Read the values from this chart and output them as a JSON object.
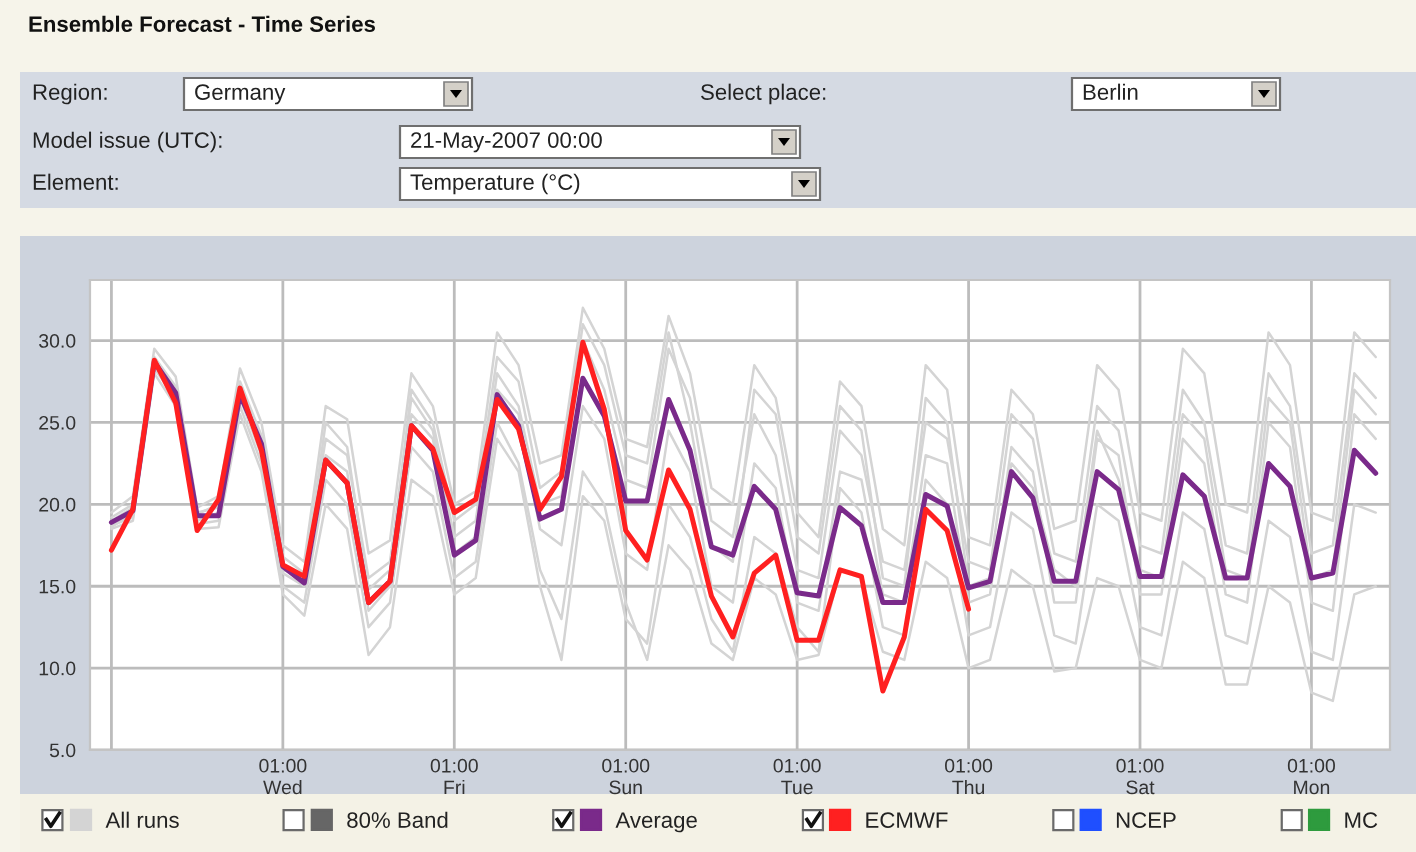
{
  "chart_data": {
    "type": "line",
    "title": "Ensemble Forecast - Time Series",
    "annotations": [
      "Region:",
      "Germany",
      "Select place:",
      "Berlin",
      "Model issue (UTC):",
      "21-May-2007 00:00",
      "Element:",
      "Temperature (°C)"
    ],
    "x": [
      "2007-05-21T01:00",
      "2007-05-21T07:00",
      "2007-05-21T13:00",
      "2007-05-21T19:00",
      "2007-05-22T01:00",
      "2007-05-22T07:00",
      "2007-05-22T13:00",
      "2007-05-22T19:00",
      "2007-05-23T01:00",
      "2007-05-23T07:00",
      "2007-05-23T13:00",
      "2007-05-23T19:00",
      "2007-05-24T01:00",
      "2007-05-24T07:00",
      "2007-05-24T13:00",
      "2007-05-24T19:00",
      "2007-05-25T01:00",
      "2007-05-25T07:00",
      "2007-05-25T13:00",
      "2007-05-25T19:00",
      "2007-05-26T01:00",
      "2007-05-26T07:00",
      "2007-05-26T13:00",
      "2007-05-26T19:00",
      "2007-05-27T01:00",
      "2007-05-27T07:00",
      "2007-05-27T13:00",
      "2007-05-27T19:00",
      "2007-05-28T01:00",
      "2007-05-28T07:00",
      "2007-05-28T13:00",
      "2007-05-28T19:00",
      "2007-05-29T01:00",
      "2007-05-29T07:00",
      "2007-05-29T13:00",
      "2007-05-29T19:00",
      "2007-05-30T01:00",
      "2007-05-30T07:00",
      "2007-05-30T13:00",
      "2007-05-30T19:00",
      "2007-05-31T01:00",
      "2007-05-31T07:00",
      "2007-05-31T13:00",
      "2007-05-31T19:00",
      "2007-06-01T01:00",
      "2007-06-01T07:00",
      "2007-06-01T13:00",
      "2007-06-01T19:00",
      "2007-06-02T01:00",
      "2007-06-02T07:00",
      "2007-06-02T13:00",
      "2007-06-02T19:00",
      "2007-06-03T01:00",
      "2007-06-03T07:00",
      "2007-06-03T13:00",
      "2007-06-03T19:00",
      "2007-06-04T01:00",
      "2007-06-04T07:00",
      "2007-06-04T13:00",
      "2007-06-04T19:00"
    ],
    "series": [
      {
        "name": "All runs",
        "color": "#d4d4d4",
        "values": [
          19.5,
          20.5,
          29.5,
          27.8,
          19.8,
          20.5,
          28.3,
          25.0,
          17.5,
          16.5,
          26.0,
          25.2,
          17.0,
          17.8,
          28.0,
          26.0,
          20.0,
          20.8,
          30.5,
          28.5,
          22.5,
          23.0,
          32.0,
          29.5,
          24.0,
          23.5,
          31.5,
          28.0,
          21.0,
          20.0,
          28.5,
          26.5,
          19.5,
          18.0,
          27.5,
          26.0,
          18.5,
          17.5,
          28.5,
          27.0,
          18.0,
          17.5,
          27.0,
          25.5,
          18.5,
          19.0,
          28.5,
          27.0,
          19.5,
          19.0,
          29.5,
          28.0,
          20.0,
          19.5,
          30.5,
          28.5,
          19.5,
          19.0,
          30.5,
          29.0
        ]
      },
      {
        "color": "#d4d4d4",
        "values": [
          18.5,
          19.0,
          28.0,
          26.0,
          18.8,
          19.0,
          26.0,
          22.5,
          15.0,
          14.0,
          21.5,
          20.0,
          12.5,
          14.0,
          23.5,
          22.0,
          15.5,
          16.5,
          25.0,
          22.5,
          16.0,
          13.0,
          22.0,
          20.0,
          14.0,
          10.5,
          17.5,
          16.0,
          11.5,
          10.5,
          15.5,
          14.5,
          10.5,
          10.8,
          16.0,
          15.5,
          11.0,
          10.5,
          16.5,
          15.5,
          10.0,
          10.5,
          16.0,
          15.0,
          9.8,
          10.0,
          15.5,
          15.0,
          10.5,
          10.0,
          16.5,
          15.5,
          9.0,
          9.0,
          15.0,
          14.0,
          8.5,
          8.0,
          14.5,
          15.0
        ]
      },
      {
        "color": "#d4d4d4",
        "values": [
          19.0,
          19.8,
          29.0,
          27.2,
          19.5,
          19.8,
          27.5,
          24.2,
          16.8,
          15.8,
          24.0,
          23.0,
          15.5,
          16.5,
          26.5,
          24.5,
          18.0,
          19.0,
          28.0,
          26.0,
          20.0,
          20.5,
          30.0,
          27.0,
          21.5,
          21.0,
          29.5,
          26.5,
          19.0,
          18.0,
          25.5,
          23.0,
          16.0,
          15.5,
          24.5,
          23.0,
          16.5,
          16.0,
          25.0,
          24.0,
          16.5,
          16.0,
          25.5,
          24.0,
          17.0,
          16.5,
          26.0,
          24.5,
          17.5,
          17.0,
          27.0,
          25.0,
          17.5,
          17.0,
          28.0,
          26.0,
          17.0,
          17.5,
          28.0,
          26.5
        ]
      },
      {
        "color": "#d4d4d4",
        "values": [
          18.7,
          19.2,
          28.3,
          26.5,
          18.5,
          18.6,
          25.5,
          22.0,
          14.5,
          13.2,
          20.0,
          18.5,
          10.8,
          12.5,
          21.5,
          20.5,
          14.5,
          15.5,
          24.0,
          22.0,
          15.0,
          10.5,
          20.5,
          19.0,
          13.0,
          11.5,
          20.0,
          18.0,
          13.0,
          11.0,
          18.0,
          17.0,
          12.5,
          11.0,
          21.0,
          19.5,
          12.5,
          12.0,
          21.5,
          20.0,
          12.0,
          12.5,
          19.5,
          18.5,
          12.0,
          11.5,
          20.0,
          19.0,
          12.5,
          12.0,
          19.5,
          18.5,
          12.0,
          11.5,
          19.0,
          18.0,
          11.0,
          10.5,
          20.0,
          19.5
        ]
      },
      {
        "color": "#d4d4d4",
        "values": [
          19.2,
          20.0,
          28.5,
          27.0,
          19.0,
          19.5,
          27.0,
          23.5,
          15.8,
          15.0,
          23.0,
          22.0,
          13.5,
          15.0,
          25.5,
          24.0,
          17.0,
          18.0,
          27.0,
          25.5,
          18.5,
          17.5,
          26.0,
          24.0,
          17.0,
          16.0,
          24.5,
          22.0,
          15.0,
          14.0,
          22.5,
          21.0,
          14.0,
          13.5,
          22.0,
          21.5,
          14.5,
          14.0,
          23.0,
          22.5,
          14.0,
          14.5,
          23.5,
          22.0,
          14.0,
          14.0,
          24.0,
          23.0,
          14.5,
          14.5,
          24.0,
          22.5,
          14.5,
          14.0,
          25.0,
          23.5,
          14.0,
          13.5,
          25.5,
          24.0
        ]
      },
      {
        "color": "#d4d4d4",
        "values": [
          18.6,
          19.5,
          28.9,
          26.9,
          19.4,
          20.0,
          26.5,
          23.0,
          16.0,
          15.5,
          25.0,
          23.5,
          14.8,
          16.0,
          27.0,
          25.0,
          19.0,
          20.0,
          29.0,
          27.5,
          21.0,
          22.0,
          31.0,
          28.5,
          23.0,
          22.5,
          30.5,
          25.0,
          17.5,
          16.5,
          27.0,
          25.5,
          18.0,
          17.0,
          26.0,
          24.5,
          15.5,
          15.0,
          26.5,
          25.0,
          15.0,
          15.5,
          22.5,
          21.0,
          16.0,
          15.0,
          24.5,
          21.5,
          16.0,
          15.5,
          25.5,
          24.0,
          16.0,
          15.5,
          26.5,
          25.0,
          15.5,
          16.0,
          27.0,
          25.5
        ]
      },
      {
        "name": "80% Band",
        "color": "#666666",
        "values": [
          null,
          null,
          null,
          null,
          null,
          null,
          null,
          null,
          null,
          null,
          null,
          null,
          null,
          null,
          null,
          null,
          null,
          null,
          null,
          null,
          null,
          null,
          null,
          null,
          null,
          null,
          null,
          null,
          null,
          null,
          null,
          null,
          null,
          null,
          null,
          null,
          null,
          null,
          null,
          null,
          null,
          null,
          null,
          null,
          null,
          null,
          null,
          null,
          null,
          null,
          null,
          null,
          null,
          null,
          null,
          null,
          null,
          null,
          null,
          null
        ]
      },
      {
        "name": "Average",
        "color": "#7a2a8a",
        "values": [
          18.9,
          19.6,
          28.7,
          26.8,
          19.3,
          19.3,
          26.7,
          23.7,
          16.2,
          15.2,
          22.7,
          21.3,
          14.0,
          15.3,
          24.8,
          23.3,
          16.9,
          17.8,
          26.7,
          24.8,
          19.1,
          19.7,
          27.7,
          25.4,
          20.2,
          20.2,
          26.4,
          23.3,
          17.4,
          16.9,
          21.1,
          19.7,
          14.6,
          14.4,
          19.8,
          18.7,
          14.0,
          14.0,
          20.6,
          19.9,
          14.9,
          15.3,
          22.0,
          20.4,
          15.3,
          15.3,
          22.0,
          20.9,
          15.6,
          15.6,
          21.8,
          20.5,
          15.5,
          15.5,
          22.5,
          21.1,
          15.5,
          15.8,
          23.3,
          21.9
        ]
      },
      {
        "name": "ECMWF",
        "color": "#ff2020",
        "values": [
          17.2,
          19.7,
          28.8,
          26.2,
          18.4,
          20.3,
          27.1,
          23.3,
          16.3,
          15.6,
          22.7,
          21.3,
          14.0,
          15.3,
          24.8,
          23.4,
          19.5,
          20.3,
          26.4,
          24.6,
          19.7,
          21.7,
          29.9,
          25.8,
          18.4,
          16.6,
          22.1,
          19.7,
          14.4,
          11.9,
          15.8,
          16.9,
          11.7,
          11.7,
          16.0,
          15.6,
          8.6,
          11.9,
          19.7,
          18.4,
          13.6,
          null,
          null,
          null,
          null,
          null,
          null,
          null,
          null,
          null,
          null,
          null,
          null,
          null,
          null,
          null,
          null,
          null,
          null,
          null
        ]
      },
      {
        "name": "NCEP",
        "color": "#1f4fff",
        "values": [
          null,
          null,
          null,
          null,
          null,
          null,
          null,
          null,
          null,
          null,
          null,
          null,
          null,
          null,
          null,
          null,
          null,
          null,
          null,
          null,
          null,
          null,
          null,
          null,
          null,
          null,
          null,
          null,
          null,
          null,
          null,
          null,
          null,
          null,
          null,
          null,
          null,
          null,
          null,
          null,
          null,
          null,
          null,
          null,
          null,
          null,
          null,
          null,
          null,
          null,
          null,
          null,
          null,
          null,
          null,
          null,
          null,
          null,
          null,
          null
        ]
      },
      {
        "name": "MC",
        "color": "#2e9b3e",
        "values": [
          null,
          null,
          null,
          null,
          null,
          null,
          null,
          null,
          null,
          null,
          null,
          null,
          null,
          null,
          null,
          null,
          null,
          null,
          null,
          null,
          null,
          null,
          null,
          null,
          null,
          null,
          null,
          null,
          null,
          null,
          null,
          null,
          null,
          null,
          null,
          null,
          null,
          null,
          null,
          null,
          null,
          null,
          null,
          null,
          null,
          null,
          null,
          null,
          null,
          null,
          null,
          null,
          null,
          null,
          null,
          null,
          null,
          null,
          null,
          null
        ]
      }
    ],
    "xlim": [
      "2007-05-20T19:00",
      "2007-06-04T23:00"
    ],
    "xticks": [
      {
        "value": "2007-05-21T01:00",
        "label": null
      },
      {
        "value": "2007-05-23T01:00",
        "label": "01:00\nWed"
      },
      {
        "value": "2007-05-25T01:00",
        "label": "01:00\nFri"
      },
      {
        "value": "2007-05-27T01:00",
        "label": "01:00\nSun"
      },
      {
        "value": "2007-05-29T01:00",
        "label": "01:00\nTue"
      },
      {
        "value": "2007-05-31T01:00",
        "label": "01:00\nThu"
      },
      {
        "value": "2007-06-02T01:00",
        "label": "01:00\nSat"
      },
      {
        "value": "2007-06-04T01:00",
        "label": "01:00\nMon"
      }
    ],
    "ylim": [
      5,
      33.7
    ],
    "yticks": [
      {
        "value": 5,
        "label": "5.0"
      },
      {
        "value": 10,
        "label": "10.0"
      },
      {
        "value": 15,
        "label": "15.0"
      },
      {
        "value": 20,
        "label": "20.0"
      },
      {
        "value": 25,
        "label": "25.0"
      },
      {
        "value": 30,
        "label": "30.0"
      }
    ],
    "grid": true,
    "legend": "bottom"
  }
}
